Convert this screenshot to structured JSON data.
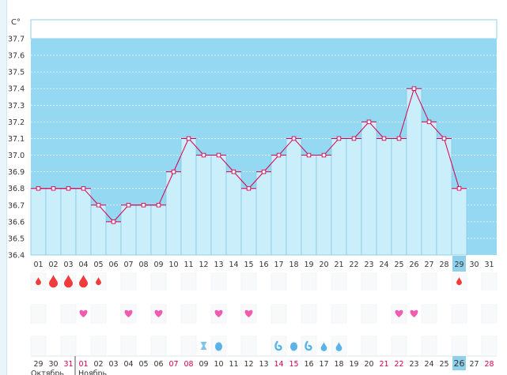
{
  "chart_data": {
    "type": "bar",
    "y_unit": "C°",
    "ylim": [
      36.4,
      37.7
    ],
    "y_ticks": [
      "37.7",
      "37.6",
      "37.5",
      "37.4",
      "37.3",
      "37.2",
      "37.1",
      "37.0",
      "36.9",
      "36.8",
      "36.7",
      "36.6",
      "36.5",
      "36.4"
    ],
    "categories": [
      "01",
      "02",
      "03",
      "04",
      "05",
      "06",
      "07",
      "08",
      "09",
      "10",
      "11",
      "12",
      "13",
      "14",
      "15",
      "16",
      "17",
      "18",
      "19",
      "20",
      "21",
      "22",
      "23",
      "24",
      "25",
      "26",
      "27",
      "28",
      "29",
      "30",
      "31"
    ],
    "values": [
      36.8,
      36.8,
      36.8,
      36.8,
      36.7,
      36.6,
      36.7,
      36.7,
      36.7,
      36.9,
      37.1,
      37.0,
      37.0,
      36.9,
      36.8,
      36.9,
      37.0,
      37.1,
      37.0,
      37.0,
      37.1,
      37.1,
      37.2,
      37.1,
      37.1,
      37.4,
      37.2,
      37.1,
      36.8,
      null,
      null
    ],
    "highlighted_day": "29",
    "cycle_days": [
      {
        "label": "29",
        "red": false
      },
      {
        "label": "30",
        "red": false
      },
      {
        "label": "31",
        "red": true
      },
      {
        "label": "01",
        "red": true
      },
      {
        "label": "02",
        "red": false
      },
      {
        "label": "03",
        "red": false
      },
      {
        "label": "04",
        "red": false
      },
      {
        "label": "05",
        "red": false
      },
      {
        "label": "06",
        "red": false
      },
      {
        "label": "07",
        "red": true
      },
      {
        "label": "08",
        "red": true
      },
      {
        "label": "09",
        "red": false
      },
      {
        "label": "10",
        "red": false
      },
      {
        "label": "11",
        "red": false
      },
      {
        "label": "12",
        "red": false
      },
      {
        "label": "13",
        "red": false
      },
      {
        "label": "14",
        "red": true
      },
      {
        "label": "15",
        "red": true
      },
      {
        "label": "16",
        "red": false
      },
      {
        "label": "17",
        "red": false
      },
      {
        "label": "18",
        "red": false
      },
      {
        "label": "19",
        "red": false
      },
      {
        "label": "20",
        "red": false
      },
      {
        "label": "21",
        "red": true
      },
      {
        "label": "22",
        "red": true
      },
      {
        "label": "23",
        "red": false
      },
      {
        "label": "24",
        "red": false
      },
      {
        "label": "25",
        "red": false
      },
      {
        "label": "26",
        "red": false,
        "highlight": true
      },
      {
        "label": "27",
        "red": false
      },
      {
        "label": "28",
        "red": true
      }
    ],
    "months": [
      "Октябрь",
      "Ноябрь"
    ],
    "flow_markers": [
      {
        "day": "01",
        "size": "small"
      },
      {
        "day": "02",
        "size": "large"
      },
      {
        "day": "03",
        "size": "large"
      },
      {
        "day": "04",
        "size": "large"
      },
      {
        "day": "05",
        "size": "small"
      },
      {
        "day": "29",
        "size": "small"
      }
    ],
    "heart_days": [
      "04",
      "07",
      "09",
      "13",
      "15",
      "25",
      "26"
    ],
    "test_days": [
      "12"
    ],
    "discharge_markers": [
      {
        "day": "13",
        "kind": "full"
      },
      {
        "day": "17",
        "kind": "curl"
      },
      {
        "day": "18",
        "kind": "full"
      },
      {
        "day": "19",
        "kind": "curl"
      },
      {
        "day": "20",
        "kind": "drop"
      },
      {
        "day": "21",
        "kind": "drop"
      }
    ],
    "colors": {
      "plot_bg": "#94d8f1",
      "bar_fill": "#cbeefb",
      "bar_stroke": "#86c9e4",
      "line": "#d6004f",
      "flow": "#f03c3c",
      "heart": "#f25bb0",
      "drop": "#5ab4e8",
      "highlight": "#8fd0ea"
    }
  }
}
